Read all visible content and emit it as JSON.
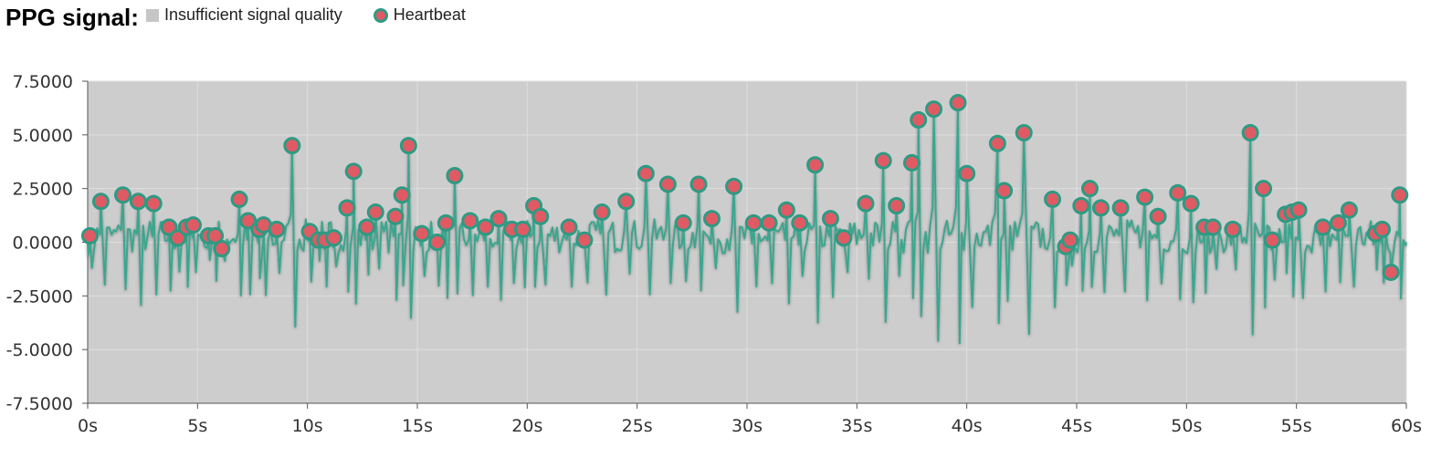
{
  "title": "PPG signal:",
  "legend": {
    "insufficient": "Insufficient signal quality",
    "heartbeat": "Heartbeat"
  },
  "colors": {
    "plot_bg": "#cdcdcd",
    "line": "#3aa68e",
    "marker_fill": "#e05a64",
    "marker_stroke": "#2e9a83"
  },
  "chart_data": {
    "type": "line",
    "title": "PPG signal:",
    "xlabel": "",
    "ylabel": "",
    "xlim": [
      0,
      60
    ],
    "ylim": [
      -7.5,
      7.5
    ],
    "x_ticks": [
      "0s",
      "5s",
      "10s",
      "15s",
      "20s",
      "25s",
      "30s",
      "35s",
      "40s",
      "45s",
      "50s",
      "55s",
      "60s"
    ],
    "y_ticks": [
      "7.5000",
      "5.0000",
      "2.5000",
      "0.0000",
      "-2.5000",
      "-5.0000",
      "-7.5000"
    ],
    "x_tick_values": [
      0,
      5,
      10,
      15,
      20,
      25,
      30,
      35,
      40,
      45,
      50,
      55,
      60
    ],
    "y_tick_values": [
      7.5,
      5,
      2.5,
      0,
      -2.5,
      -5,
      -7.5
    ],
    "grid": true,
    "legend_position": "top",
    "series": [
      {
        "name": "Heartbeat",
        "beats": [
          [
            0.1,
            0.3
          ],
          [
            0.6,
            1.9
          ],
          [
            1.6,
            2.2
          ],
          [
            2.3,
            1.9
          ],
          [
            3.0,
            1.8
          ],
          [
            3.7,
            0.7
          ],
          [
            4.1,
            0.2
          ],
          [
            4.5,
            0.7
          ],
          [
            4.8,
            0.8
          ],
          [
            5.5,
            0.3
          ],
          [
            5.8,
            0.3
          ],
          [
            6.1,
            -0.3
          ],
          [
            6.9,
            2.0
          ],
          [
            7.3,
            1.0
          ],
          [
            7.8,
            0.6
          ],
          [
            8.0,
            0.8
          ],
          [
            8.6,
            0.6
          ],
          [
            9.3,
            4.5
          ],
          [
            10.1,
            0.5
          ],
          [
            10.5,
            0.1
          ],
          [
            10.8,
            0.1
          ],
          [
            11.2,
            0.2
          ],
          [
            11.8,
            1.6
          ],
          [
            12.1,
            3.3
          ],
          [
            12.7,
            0.7
          ],
          [
            13.1,
            1.4
          ],
          [
            14.0,
            1.2
          ],
          [
            14.3,
            2.2
          ],
          [
            14.6,
            4.5
          ],
          [
            15.2,
            0.4
          ],
          [
            15.9,
            0.0
          ],
          [
            16.3,
            0.9
          ],
          [
            16.7,
            3.1
          ],
          [
            17.4,
            1.0
          ],
          [
            18.1,
            0.7
          ],
          [
            18.7,
            1.1
          ],
          [
            19.3,
            0.6
          ],
          [
            19.8,
            0.6
          ],
          [
            20.3,
            1.7
          ],
          [
            20.6,
            1.2
          ],
          [
            21.9,
            0.7
          ],
          [
            22.6,
            0.1
          ],
          [
            23.4,
            1.4
          ],
          [
            24.5,
            1.9
          ],
          [
            25.4,
            3.2
          ],
          [
            26.4,
            2.7
          ],
          [
            27.1,
            0.9
          ],
          [
            27.8,
            2.7
          ],
          [
            28.4,
            1.1
          ],
          [
            29.4,
            2.6
          ],
          [
            30.3,
            0.9
          ],
          [
            31.0,
            0.9
          ],
          [
            31.8,
            1.5
          ],
          [
            32.4,
            0.9
          ],
          [
            33.1,
            3.6
          ],
          [
            33.8,
            1.1
          ],
          [
            34.4,
            0.2
          ],
          [
            35.4,
            1.8
          ],
          [
            36.2,
            3.8
          ],
          [
            36.8,
            1.7
          ],
          [
            37.5,
            3.7
          ],
          [
            37.8,
            5.7
          ],
          [
            38.5,
            6.2
          ],
          [
            39.6,
            6.5
          ],
          [
            40.0,
            3.2
          ],
          [
            41.4,
            4.6
          ],
          [
            41.7,
            2.4
          ],
          [
            42.6,
            5.1
          ],
          [
            43.9,
            2.0
          ],
          [
            44.5,
            -0.2
          ],
          [
            44.7,
            0.1
          ],
          [
            45.2,
            1.7
          ],
          [
            45.6,
            2.5
          ],
          [
            46.1,
            1.6
          ],
          [
            47.0,
            1.6
          ],
          [
            48.1,
            2.1
          ],
          [
            48.7,
            1.2
          ],
          [
            49.6,
            2.3
          ],
          [
            50.2,
            1.8
          ],
          [
            50.8,
            0.7
          ],
          [
            51.2,
            0.7
          ],
          [
            52.1,
            0.6
          ],
          [
            52.9,
            5.1
          ],
          [
            53.5,
            2.5
          ],
          [
            53.9,
            0.1
          ],
          [
            54.5,
            1.3
          ],
          [
            54.8,
            1.4
          ],
          [
            55.1,
            1.5
          ],
          [
            56.2,
            0.7
          ],
          [
            56.9,
            0.9
          ],
          [
            57.4,
            1.5
          ],
          [
            58.6,
            0.4
          ],
          [
            58.9,
            0.6
          ],
          [
            59.3,
            -1.4
          ],
          [
            59.7,
            2.2
          ]
        ]
      }
    ]
  }
}
